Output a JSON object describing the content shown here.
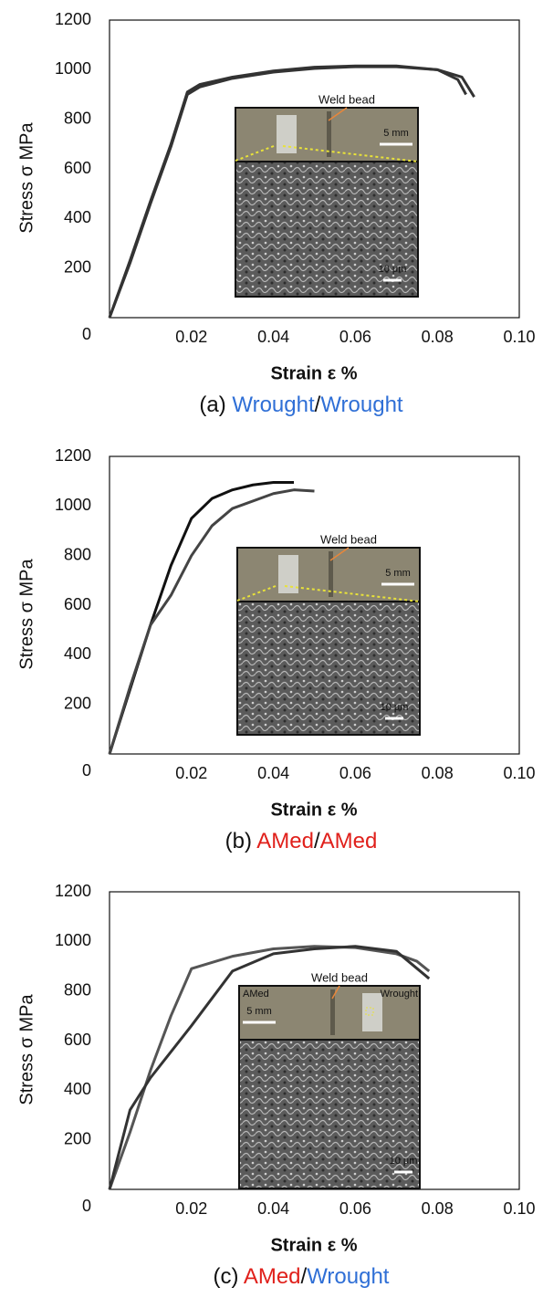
{
  "chart_data": [
    {
      "type": "line",
      "ylabel": "Stress  σ MPa",
      "xlabel": "Strain ε %",
      "caption": [
        {
          "text": "(a) ",
          "color": "#111111"
        },
        {
          "text": "Wrought",
          "color": "#2f6fd6"
        },
        {
          "text": "/",
          "color": "#111111"
        },
        {
          "text": "Wrought",
          "color": "#2f6fd6"
        }
      ],
      "xlim": [
        0,
        0.1
      ],
      "ylim": [
        0,
        1200
      ],
      "xticks": [
        0.02,
        0.04,
        0.06,
        0.08,
        {
          "value": 0.1,
          "label": "0.10"
        }
      ],
      "yticks": [
        0,
        200,
        400,
        600,
        800,
        1000,
        1200
      ],
      "series": [
        {
          "color": "#333333",
          "x": [
            0,
            0.005,
            0.01,
            0.015,
            0.019,
            0.022,
            0.03,
            0.04,
            0.05,
            0.06,
            0.07,
            0.08,
            0.085,
            0.087
          ],
          "values": [
            0,
            230,
            470,
            700,
            910,
            940,
            970,
            995,
            1010,
            1015,
            1015,
            1000,
            960,
            900
          ]
        },
        {
          "color": "#333333",
          "x": [
            0,
            0.005,
            0.01,
            0.015,
            0.019,
            0.022,
            0.03,
            0.04,
            0.05,
            0.06,
            0.07,
            0.08,
            0.086,
            0.089
          ],
          "values": [
            0,
            220,
            460,
            690,
            900,
            930,
            965,
            990,
            1005,
            1012,
            1012,
            1000,
            970,
            890
          ]
        }
      ],
      "annotations": [
        {
          "text": "Weld bead"
        },
        {
          "text": "5 mm"
        },
        {
          "text": "10 μm"
        }
      ]
    },
    {
      "type": "line",
      "ylabel": "Stress  σ MPa",
      "xlabel": "Strain ε %",
      "caption": [
        {
          "text": "(b) ",
          "color": "#111111"
        },
        {
          "text": "AMed",
          "color": "#e0201b"
        },
        {
          "text": "/",
          "color": "#111111"
        },
        {
          "text": "AMed",
          "color": "#e0201b"
        }
      ],
      "xlim": [
        0,
        0.1
      ],
      "ylim": [
        0,
        1200
      ],
      "xticks": [
        0.02,
        0.04,
        0.06,
        0.08,
        {
          "value": 0.1,
          "label": "0.10"
        }
      ],
      "yticks": [
        0,
        200,
        400,
        600,
        800,
        1000,
        1200
      ],
      "series": [
        {
          "color": "#111111",
          "x": [
            0,
            0.005,
            0.01,
            0.015,
            0.02,
            0.025,
            0.03,
            0.035,
            0.04,
            0.045
          ],
          "values": [
            0,
            260,
            520,
            760,
            950,
            1030,
            1065,
            1085,
            1095,
            1095
          ]
        },
        {
          "color": "#444444",
          "x": [
            0,
            0.005,
            0.01,
            0.015,
            0.02,
            0.025,
            0.03,
            0.04,
            0.045,
            0.05
          ],
          "values": [
            0,
            270,
            520,
            640,
            800,
            920,
            990,
            1050,
            1065,
            1060
          ]
        }
      ],
      "annotations": [
        {
          "text": "Weld bead"
        },
        {
          "text": "5 mm"
        },
        {
          "text": "10 μm"
        }
      ]
    },
    {
      "type": "line",
      "ylabel": "Stress  σ MPa",
      "xlabel": "Strain ε %",
      "caption": [
        {
          "text": "(c) ",
          "color": "#111111"
        },
        {
          "text": "AMed",
          "color": "#e0201b"
        },
        {
          "text": "/",
          "color": "#111111"
        },
        {
          "text": "Wrought",
          "color": "#2f6fd6"
        }
      ],
      "xlim": [
        0,
        0.1
      ],
      "ylim": [
        0,
        1200
      ],
      "xticks": [
        0.02,
        0.04,
        0.06,
        0.08,
        {
          "value": 0.1,
          "label": "0.10"
        }
      ],
      "yticks": [
        0,
        200,
        400,
        600,
        800,
        1000,
        1200
      ],
      "series": [
        {
          "color": "#555555",
          "x": [
            0,
            0.005,
            0.01,
            0.015,
            0.02,
            0.03,
            0.04,
            0.05,
            0.06,
            0.07,
            0.075,
            0.078
          ],
          "values": [
            0,
            230,
            480,
            700,
            890,
            940,
            970,
            980,
            975,
            950,
            920,
            880
          ]
        },
        {
          "color": "#333333",
          "x": [
            0,
            0.005,
            0.01,
            0.02,
            0.03,
            0.04,
            0.05,
            0.06,
            0.07,
            0.078
          ],
          "values": [
            0,
            320,
            450,
            660,
            880,
            950,
            970,
            980,
            960,
            850
          ]
        }
      ],
      "annotations": [
        {
          "text": "Weld bead"
        },
        {
          "text": "5 mm"
        },
        {
          "text": "10 μm"
        },
        {
          "text": "AMed"
        },
        {
          "text": "Wrought"
        }
      ]
    }
  ]
}
